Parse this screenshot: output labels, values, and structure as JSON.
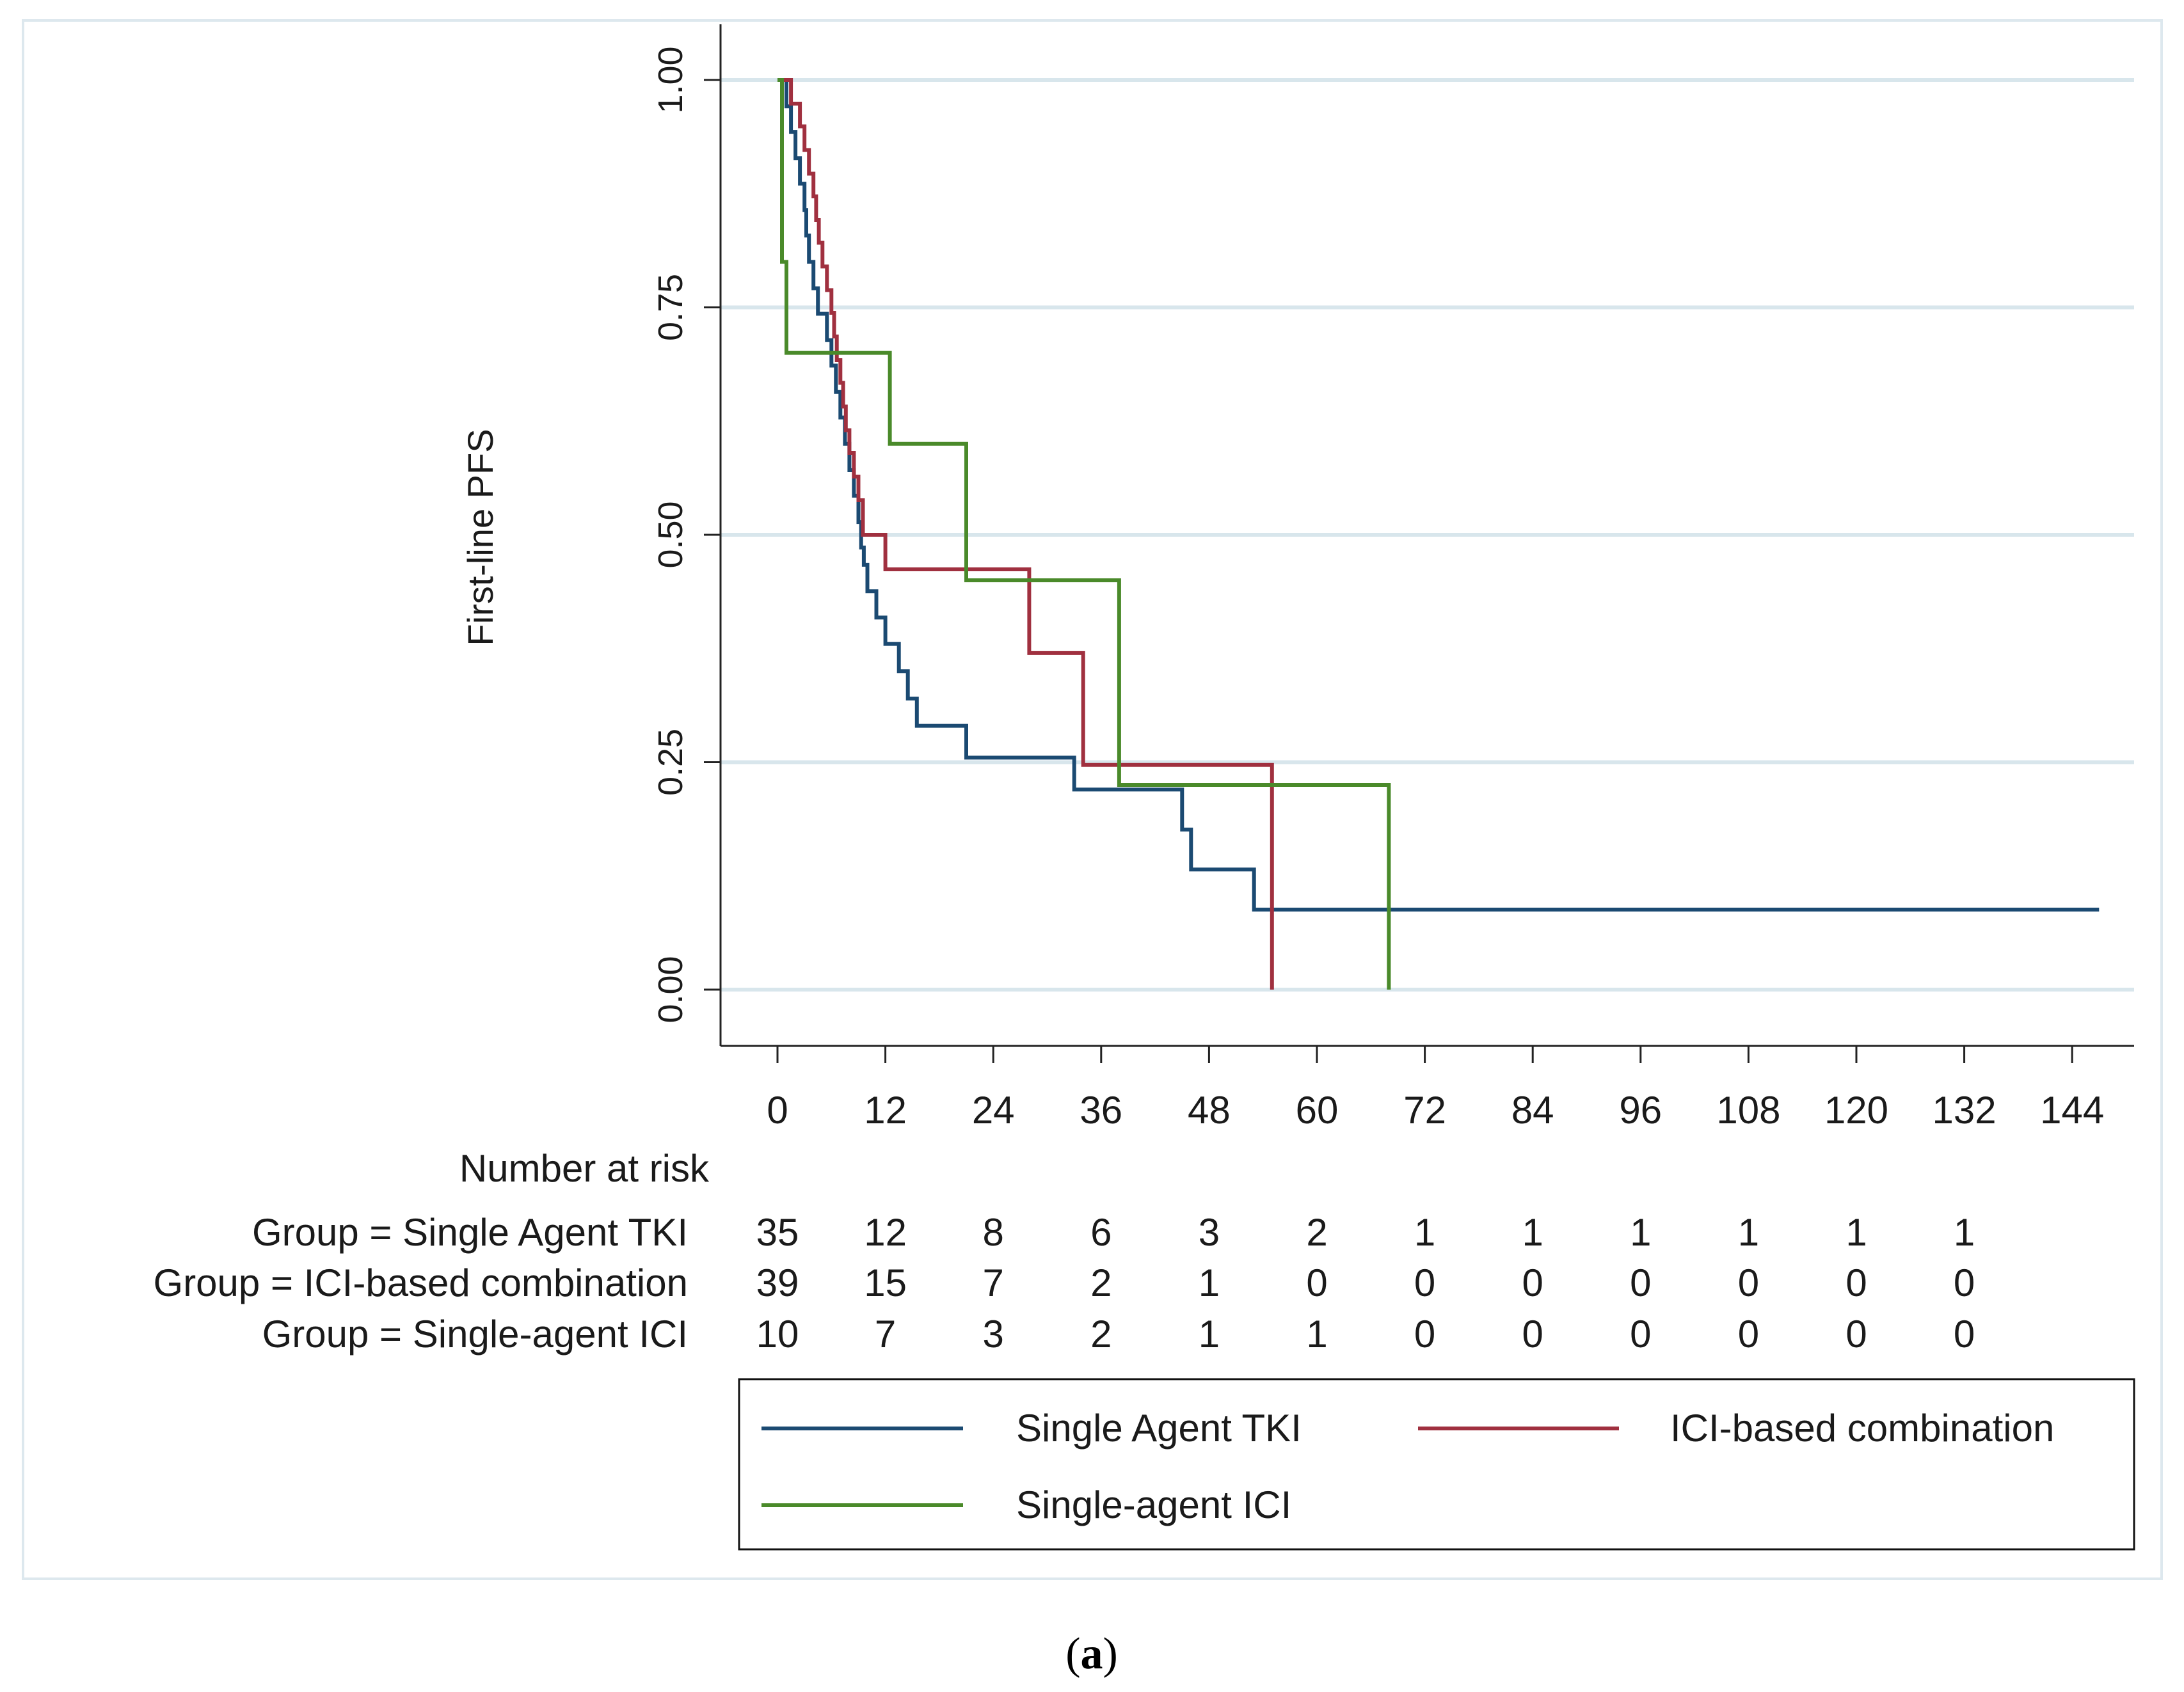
{
  "chart_data": {
    "type": "line",
    "subtype": "kaplan-meier-step",
    "ylabel": "First-line PFS",
    "xlabel": "",
    "xlim": [
      -6,
      148
    ],
    "ylim": [
      -0.06,
      1.06
    ],
    "x_ticks": [
      0,
      12,
      24,
      36,
      48,
      60,
      72,
      84,
      96,
      108,
      120,
      132,
      144
    ],
    "y_ticks": [
      0.0,
      0.25,
      0.5,
      0.75,
      1.0
    ],
    "y_tick_labels": [
      "0.00",
      "0.25",
      "0.50",
      "0.75",
      "1.00"
    ],
    "grid": "horizontal",
    "series": [
      {
        "name": "Single Agent TKI",
        "color": "#1b4a72",
        "points": [
          [
            0,
            1.0
          ],
          [
            1,
            1.0
          ],
          [
            1,
            0.971
          ],
          [
            1.5,
            0.971
          ],
          [
            1.5,
            0.943
          ],
          [
            2,
            0.943
          ],
          [
            2,
            0.914
          ],
          [
            2.5,
            0.914
          ],
          [
            2.5,
            0.886
          ],
          [
            3,
            0.886
          ],
          [
            3,
            0.857
          ],
          [
            3.2,
            0.857
          ],
          [
            3.2,
            0.829
          ],
          [
            3.5,
            0.829
          ],
          [
            3.5,
            0.8
          ],
          [
            4,
            0.8
          ],
          [
            4,
            0.771
          ],
          [
            4.5,
            0.771
          ],
          [
            4.5,
            0.743
          ],
          [
            5.5,
            0.743
          ],
          [
            5.5,
            0.714
          ],
          [
            6,
            0.714
          ],
          [
            6,
            0.686
          ],
          [
            6.5,
            0.686
          ],
          [
            6.5,
            0.657
          ],
          [
            7,
            0.657
          ],
          [
            7,
            0.629
          ],
          [
            7.5,
            0.629
          ],
          [
            7.5,
            0.6
          ],
          [
            8,
            0.6
          ],
          [
            8,
            0.571
          ],
          [
            8.5,
            0.571
          ],
          [
            8.5,
            0.543
          ],
          [
            9,
            0.543
          ],
          [
            9,
            0.514
          ],
          [
            9.3,
            0.514
          ],
          [
            9.3,
            0.486
          ],
          [
            9.6,
            0.486
          ],
          [
            9.6,
            0.467
          ],
          [
            10,
            0.467
          ],
          [
            10,
            0.438
          ],
          [
            11,
            0.438
          ],
          [
            11,
            0.409
          ],
          [
            12,
            0.409
          ],
          [
            12,
            0.38
          ],
          [
            13.5,
            0.38
          ],
          [
            13.5,
            0.35
          ],
          [
            14.5,
            0.35
          ],
          [
            14.5,
            0.32
          ],
          [
            15.5,
            0.32
          ],
          [
            15.5,
            0.29
          ],
          [
            21,
            0.29
          ],
          [
            21,
            0.255
          ],
          [
            33,
            0.255
          ],
          [
            33,
            0.22
          ],
          [
            45,
            0.22
          ],
          [
            45,
            0.176
          ],
          [
            46,
            0.176
          ],
          [
            46,
            0.132
          ],
          [
            53,
            0.132
          ],
          [
            53,
            0.088
          ],
          [
            147,
            0.088
          ]
        ]
      },
      {
        "name": "ICI-based combination",
        "color": "#a0303f",
        "points": [
          [
            0,
            1.0
          ],
          [
            1.5,
            1.0
          ],
          [
            1.5,
            0.974
          ],
          [
            2.5,
            0.974
          ],
          [
            2.5,
            0.949
          ],
          [
            3,
            0.949
          ],
          [
            3,
            0.923
          ],
          [
            3.5,
            0.923
          ],
          [
            3.5,
            0.897
          ],
          [
            4,
            0.897
          ],
          [
            4,
            0.872
          ],
          [
            4.3,
            0.872
          ],
          [
            4.3,
            0.846
          ],
          [
            4.6,
            0.846
          ],
          [
            4.6,
            0.821
          ],
          [
            5,
            0.821
          ],
          [
            5,
            0.795
          ],
          [
            5.5,
            0.795
          ],
          [
            5.5,
            0.769
          ],
          [
            6,
            0.769
          ],
          [
            6,
            0.744
          ],
          [
            6.3,
            0.744
          ],
          [
            6.3,
            0.718
          ],
          [
            6.6,
            0.718
          ],
          [
            6.6,
            0.692
          ],
          [
            7,
            0.692
          ],
          [
            7,
            0.667
          ],
          [
            7.3,
            0.667
          ],
          [
            7.3,
            0.641
          ],
          [
            7.6,
            0.641
          ],
          [
            7.6,
            0.615
          ],
          [
            8,
            0.615
          ],
          [
            8,
            0.59
          ],
          [
            8.5,
            0.59
          ],
          [
            8.5,
            0.564
          ],
          [
            9,
            0.564
          ],
          [
            9,
            0.538
          ],
          [
            9.5,
            0.538
          ],
          [
            9.5,
            0.5
          ],
          [
            12,
            0.5
          ],
          [
            12,
            0.462
          ],
          [
            28,
            0.462
          ],
          [
            28,
            0.37
          ],
          [
            34,
            0.37
          ],
          [
            34,
            0.247
          ],
          [
            55,
            0.247
          ],
          [
            55,
            0.0
          ]
        ]
      },
      {
        "name": "Single-agent ICI",
        "color": "#4a8a2a",
        "points": [
          [
            0,
            1.0
          ],
          [
            0.5,
            1.0
          ],
          [
            0.5,
            0.8
          ],
          [
            1,
            0.8
          ],
          [
            1,
            0.7
          ],
          [
            12.5,
            0.7
          ],
          [
            12.5,
            0.6
          ],
          [
            21,
            0.6
          ],
          [
            21,
            0.45
          ],
          [
            38,
            0.45
          ],
          [
            38,
            0.225
          ],
          [
            68,
            0.225
          ],
          [
            68,
            0.0
          ]
        ]
      }
    ]
  },
  "risk_table": {
    "title": "Number at risk",
    "rows": [
      {
        "label": "Group = Single Agent TKI",
        "values": [
          "35",
          "12",
          "8",
          "6",
          "3",
          "2",
          "1",
          "1",
          "1",
          "1",
          "1",
          "1"
        ]
      },
      {
        "label": "Group = ICI-based combination",
        "values": [
          "39",
          "15",
          "7",
          "2",
          "1",
          "0",
          "0",
          "0",
          "0",
          "0",
          "0",
          "0"
        ]
      },
      {
        "label": "Group = Single-agent ICI",
        "values": [
          "10",
          "7",
          "3",
          "2",
          "1",
          "1",
          "0",
          "0",
          "0",
          "0",
          "0",
          "0"
        ]
      }
    ]
  },
  "legend": {
    "items": [
      {
        "label": "Single Agent TKI",
        "color": "#1b4a72"
      },
      {
        "label": "ICI-based combination",
        "color": "#a0303f"
      },
      {
        "label": "Single-agent ICI",
        "color": "#4a8a2a"
      }
    ]
  },
  "caption": {
    "open": "(",
    "letter": "a",
    "close": ")"
  }
}
